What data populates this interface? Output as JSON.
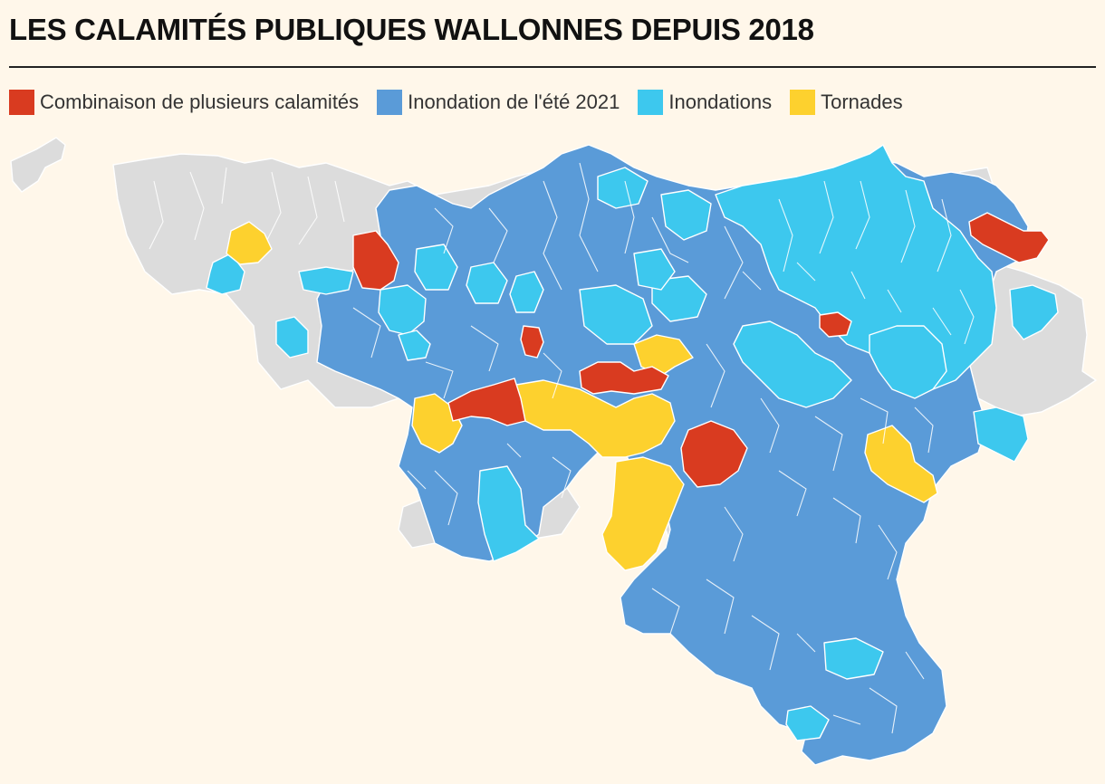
{
  "title": "LES CALAMITÉS PUBLIQUES WALLONNES DEPUIS 2018",
  "legend": [
    {
      "label": "Combinaison de plusieurs calamités",
      "color": "#d93b20"
    },
    {
      "label": "Inondation de l'été 2021",
      "color": "#5a9bd8"
    },
    {
      "label": "Inondations",
      "color": "#3dc8ee"
    },
    {
      "label": "Tornades",
      "color": "#fdd12e"
    }
  ],
  "no_data_color": "#dcdcdc"
}
